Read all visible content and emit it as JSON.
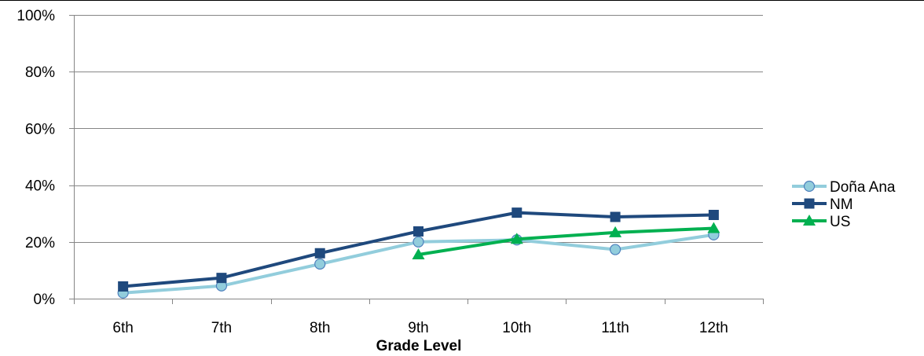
{
  "chart_data": {
    "type": "line",
    "title": "",
    "xlabel": "Grade Level",
    "ylabel": "",
    "categories": [
      "6th",
      "7th",
      "8th",
      "9th",
      "10th",
      "11th",
      "12th"
    ],
    "ylim": [
      0,
      100
    ],
    "yticks": [
      "0%",
      "20%",
      "40%",
      "60%",
      "80%",
      "100%"
    ],
    "ytick_values": [
      0,
      20,
      40,
      60,
      80,
      100
    ],
    "grid": true,
    "legend_position": "right",
    "series": [
      {
        "name": "Doña Ana",
        "color": "#92CDDC",
        "marker": "circle",
        "values": [
          2,
          4.5,
          12.2,
          20,
          20.7,
          17.3,
          22.5
        ]
      },
      {
        "name": "NM",
        "color": "#1F497D",
        "marker": "square",
        "values": [
          4.3,
          7.3,
          16,
          23.7,
          30.3,
          28.8,
          29.5
        ]
      },
      {
        "name": "US",
        "color": "#00B050",
        "marker": "triangle",
        "values": [
          null,
          null,
          null,
          15.5,
          21,
          23.3,
          24.8
        ]
      }
    ]
  }
}
